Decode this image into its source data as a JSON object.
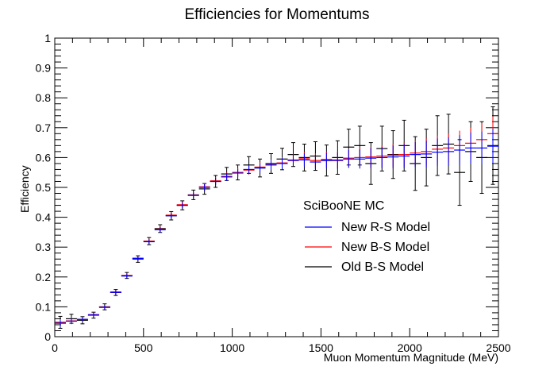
{
  "chart_data": {
    "type": "scatter",
    "title": "Efficiencies for Momentums",
    "xlabel": "Muon Momentum Magnitude (MeV)",
    "ylabel": "Efficiency",
    "xlim": [
      0,
      2500
    ],
    "ylim": [
      0,
      1
    ],
    "x_ticks": [
      "0",
      "500",
      "1000",
      "1500",
      "2000",
      "2500"
    ],
    "y_ticks": [
      "0",
      "0.1",
      "0.2",
      "0.3",
      "0.4",
      "0.5",
      "0.6",
      "0.7",
      "0.8",
      "0.9",
      "1"
    ],
    "bin_width": 62.5,
    "grid": false,
    "legend_position": "center-right",
    "legend_header": "SciBooNE MC",
    "x": [
      31.25,
      93.75,
      156.25,
      218.75,
      281.25,
      343.75,
      406.25,
      468.75,
      531.25,
      593.75,
      656.25,
      718.75,
      781.25,
      843.75,
      906.25,
      968.75,
      1031.25,
      1093.75,
      1156.25,
      1218.75,
      1281.25,
      1343.75,
      1406.25,
      1468.75,
      1531.25,
      1593.75,
      1656.25,
      1718.75,
      1781.25,
      1843.75,
      1906.25,
      1968.75,
      2031.25,
      2093.75,
      2156.25,
      2218.75,
      2281.25,
      2343.75,
      2406.25,
      2468.75
    ],
    "series": [
      {
        "name": "New R-S Model",
        "color": "#0000ff",
        "values": [
          0.045,
          0.052,
          0.058,
          0.073,
          0.098,
          0.148,
          0.203,
          0.262,
          0.318,
          0.358,
          0.405,
          0.44,
          0.473,
          0.5,
          0.52,
          0.535,
          0.548,
          0.56,
          0.565,
          0.575,
          0.58,
          0.59,
          0.592,
          0.585,
          0.59,
          0.59,
          0.595,
          0.595,
          0.598,
          0.6,
          0.602,
          0.605,
          0.61,
          0.612,
          0.618,
          0.62,
          0.625,
          0.632,
          0.632,
          0.638
        ],
        "errors": [
          0.012,
          0.01,
          0.008,
          0.007,
          0.007,
          0.007,
          0.007,
          0.008,
          0.008,
          0.009,
          0.009,
          0.01,
          0.01,
          0.011,
          0.012,
          0.013,
          0.014,
          0.015,
          0.016,
          0.017,
          0.018,
          0.02,
          0.022,
          0.024,
          0.026,
          0.028,
          0.03,
          0.032,
          0.034,
          0.036,
          0.038,
          0.04,
          0.042,
          0.044,
          0.046,
          0.048,
          0.05,
          0.052,
          0.055,
          0.058
        ]
      },
      {
        "name": "New B-S Model",
        "color": "#ff0000",
        "values": [
          0.047,
          0.053,
          0.058,
          0.074,
          0.099,
          0.15,
          0.205,
          0.263,
          0.32,
          0.36,
          0.407,
          0.442,
          0.474,
          0.502,
          0.522,
          0.537,
          0.55,
          0.558,
          0.568,
          0.576,
          0.582,
          0.592,
          0.596,
          0.59,
          0.594,
          0.592,
          0.598,
          0.6,
          0.602,
          0.605,
          0.608,
          0.61,
          0.615,
          0.62,
          0.628,
          0.632,
          0.64,
          0.648,
          0.66,
          0.68
        ],
        "errors": [
          0.012,
          0.01,
          0.008,
          0.007,
          0.007,
          0.007,
          0.007,
          0.008,
          0.008,
          0.009,
          0.009,
          0.01,
          0.01,
          0.011,
          0.012,
          0.013,
          0.014,
          0.015,
          0.016,
          0.017,
          0.018,
          0.02,
          0.022,
          0.024,
          0.026,
          0.028,
          0.03,
          0.032,
          0.034,
          0.036,
          0.038,
          0.04,
          0.042,
          0.044,
          0.046,
          0.048,
          0.05,
          0.052,
          0.055,
          0.058
        ]
      },
      {
        "name": "Old B-S Model",
        "color": "#000000",
        "values": [
          0.048,
          0.06,
          0.055,
          0.072,
          0.1,
          0.148,
          0.205,
          0.26,
          0.32,
          0.362,
          0.405,
          0.44,
          0.475,
          0.495,
          0.52,
          0.545,
          0.55,
          0.575,
          0.565,
          0.58,
          0.595,
          0.61,
          0.6,
          0.605,
          0.59,
          0.6,
          0.635,
          0.64,
          0.58,
          0.63,
          0.61,
          0.64,
          0.58,
          0.6,
          0.64,
          0.645,
          0.55,
          0.62,
          0.6,
          0.64
        ],
        "errors": [
          0.02,
          0.015,
          0.012,
          0.01,
          0.01,
          0.01,
          0.01,
          0.011,
          0.012,
          0.013,
          0.014,
          0.015,
          0.016,
          0.018,
          0.02,
          0.022,
          0.025,
          0.028,
          0.03,
          0.033,
          0.036,
          0.04,
          0.045,
          0.048,
          0.052,
          0.056,
          0.06,
          0.065,
          0.07,
          0.075,
          0.08,
          0.085,
          0.09,
          0.095,
          0.1,
          0.1,
          0.11,
          0.1,
          0.12,
          0.13
        ]
      }
    ]
  }
}
